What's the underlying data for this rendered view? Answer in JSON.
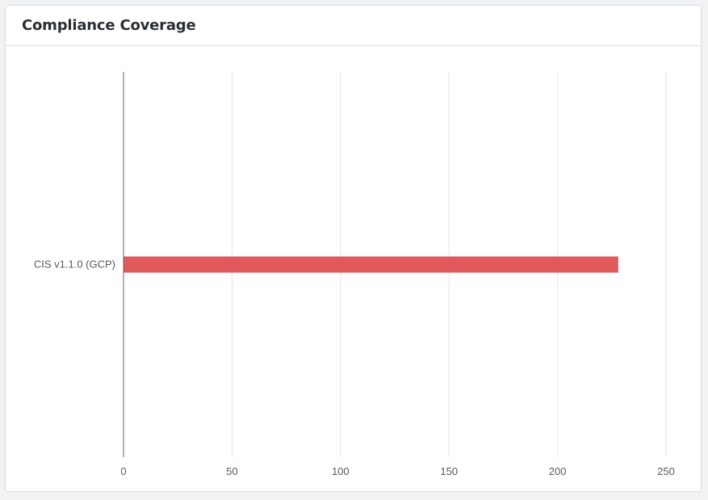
{
  "panel": {
    "title": "Compliance Coverage"
  },
  "colors": {
    "bar": "#e05a5c",
    "grid": "#e2e4ea",
    "axis": "#666666"
  },
  "chart_data": {
    "type": "bar",
    "orientation": "horizontal",
    "title": "",
    "xlabel": "",
    "ylabel": "",
    "categories": [
      "CIS v1.1.0 (GCP)"
    ],
    "values": [
      228
    ],
    "xlim": [
      0,
      250
    ],
    "xticks": [
      0,
      50,
      100,
      150,
      200,
      250
    ],
    "grid": true,
    "legend": "none"
  }
}
